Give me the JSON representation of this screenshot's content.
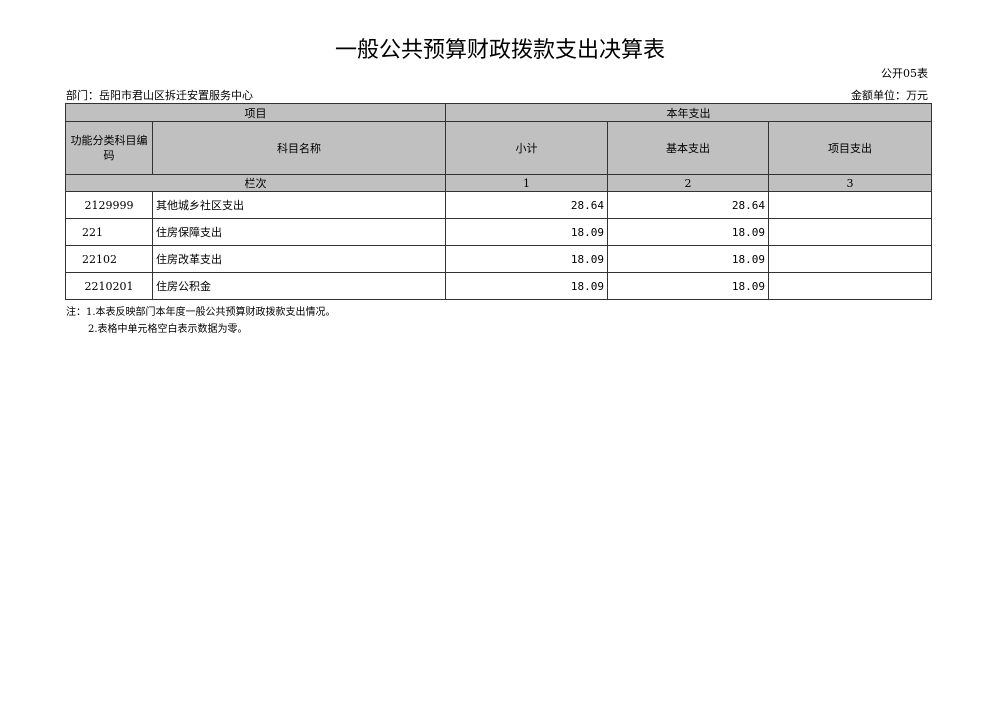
{
  "title": "一般公共预算财政拨款支出决算表",
  "table_code": "公开05表",
  "department": "部门：岳阳市君山区拆迁安置服务中心",
  "unit": "金额单位：万元",
  "headers": {
    "item": "项目",
    "current_year": "本年支出",
    "code": "功能分类科目编码",
    "name": "科目名称",
    "subtotal": "小计",
    "basic": "基本支出",
    "project": "项目支出",
    "row_label": "栏次",
    "col1": "1",
    "col2": "2",
    "col3": "3"
  },
  "rows": [
    {
      "code": "2129999",
      "name": "其他城乡社区支出",
      "subtotal": "28.64",
      "basic": "28.64",
      "project": ""
    },
    {
      "code": "221",
      "name": "住房保障支出",
      "subtotal": "18.09",
      "basic": "18.09",
      "project": ""
    },
    {
      "code": "22102",
      "name": "住房改革支出",
      "subtotal": "18.09",
      "basic": "18.09",
      "project": ""
    },
    {
      "code": "2210201",
      "name": "住房公积金",
      "subtotal": "18.09",
      "basic": "18.09",
      "project": ""
    }
  ],
  "notes": [
    "注：1.本表反映部门本年度一般公共预算财政拨款支出情况。",
    "2.表格中单元格空白表示数据为零。"
  ]
}
